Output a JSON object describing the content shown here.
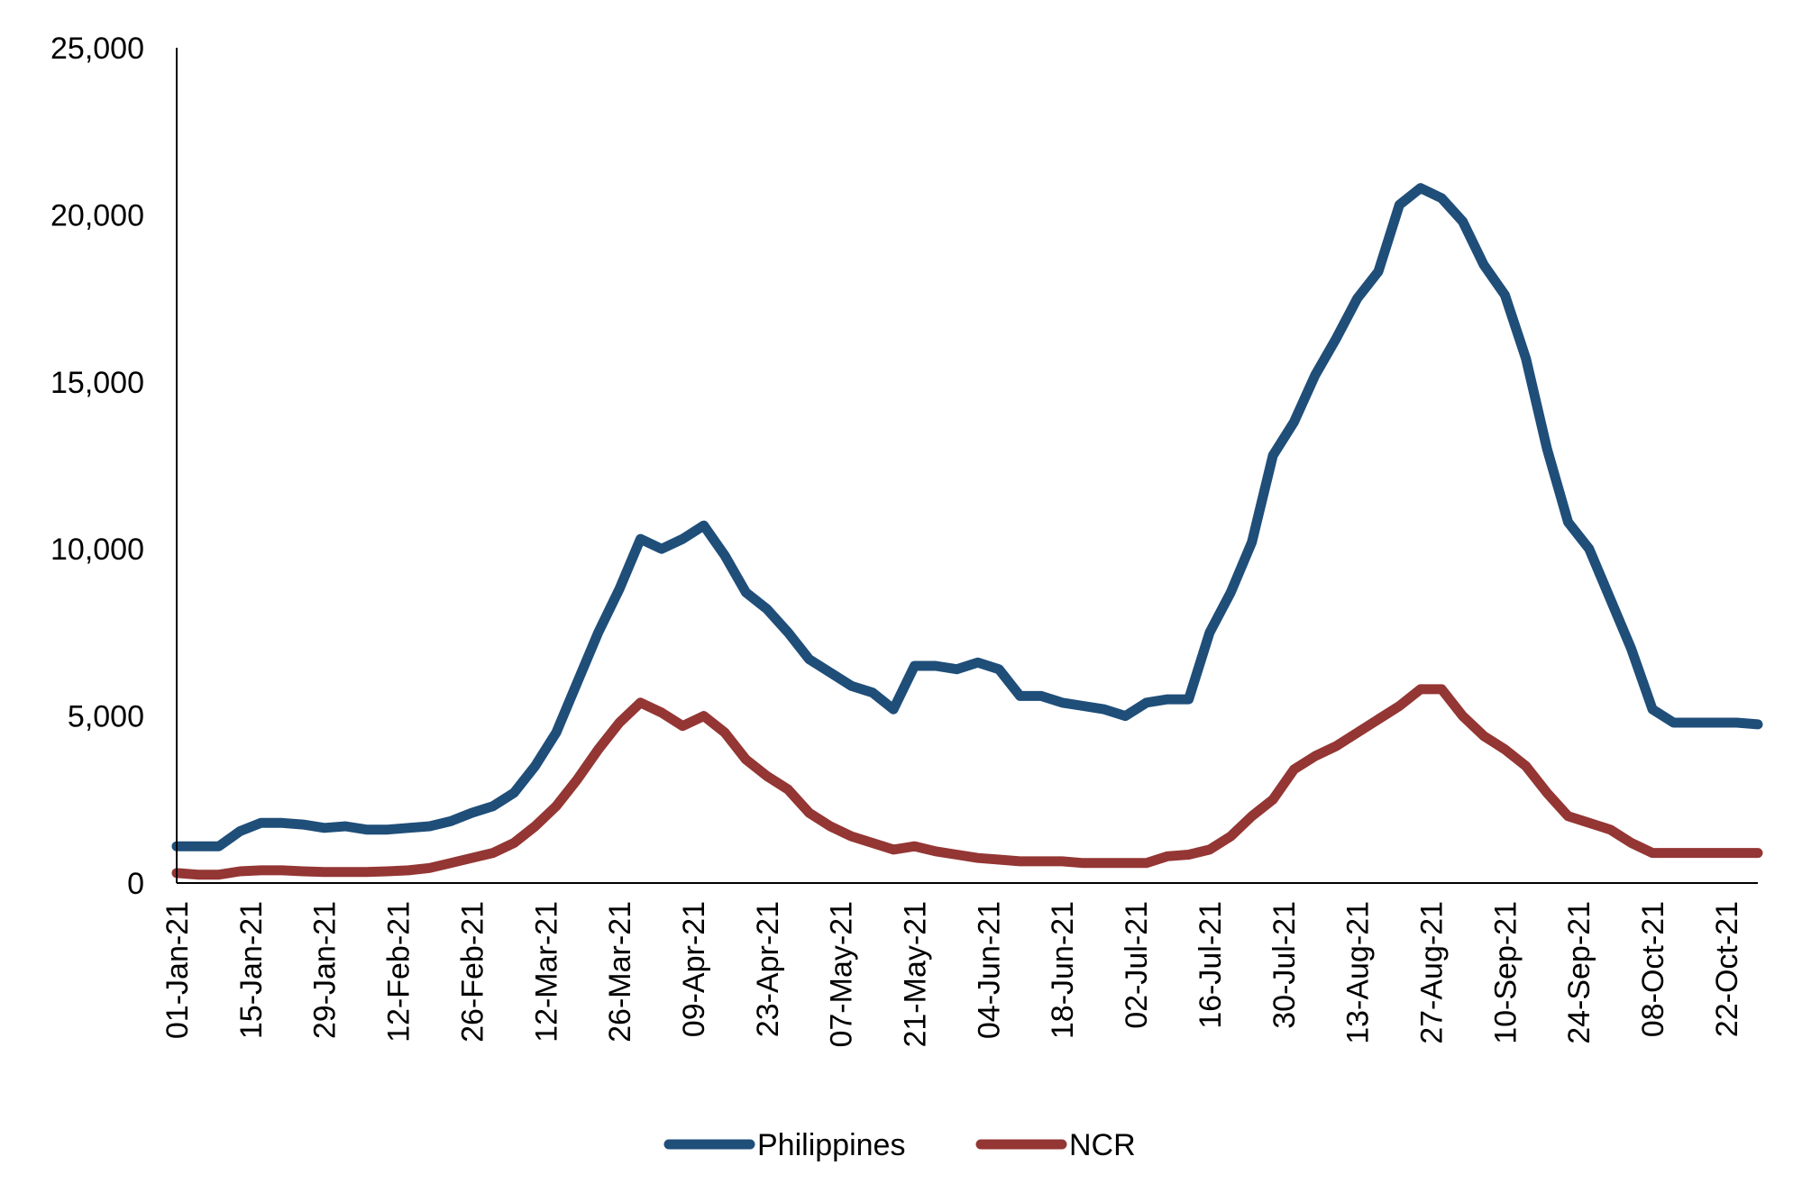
{
  "chart_data": {
    "type": "line",
    "title": "",
    "xlabel": "",
    "ylabel": "",
    "ylim": [
      0,
      25000
    ],
    "y_ticks": [
      "0",
      "5,000",
      "10,000",
      "15,000",
      "20,000",
      "25,000"
    ],
    "x_ticks": [
      "01-Jan-21",
      "15-Jan-21",
      "29-Jan-21",
      "12-Feb-21",
      "26-Feb-21",
      "12-Mar-21",
      "26-Mar-21",
      "09-Apr-21",
      "23-Apr-21",
      "07-May-21",
      "21-May-21",
      "04-Jun-21",
      "18-Jun-21",
      "02-Jul-21",
      "16-Jul-21",
      "30-Jul-21",
      "13-Aug-21",
      "27-Aug-21",
      "10-Sep-21",
      "24-Sep-21",
      "08-Oct-21",
      "22-Oct-21"
    ],
    "x_range": [
      "01-Jan-21",
      "28-Oct-21"
    ],
    "grid": false,
    "legend_position": "bottom-center",
    "x": [
      "01-Jan-21",
      "05-Jan-21",
      "09-Jan-21",
      "13-Jan-21",
      "17-Jan-21",
      "21-Jan-21",
      "25-Jan-21",
      "29-Jan-21",
      "02-Feb-21",
      "06-Feb-21",
      "10-Feb-21",
      "14-Feb-21",
      "18-Feb-21",
      "22-Feb-21",
      "26-Feb-21",
      "02-Mar-21",
      "06-Mar-21",
      "10-Mar-21",
      "14-Mar-21",
      "18-Mar-21",
      "22-Mar-21",
      "26-Mar-21",
      "30-Mar-21",
      "03-Apr-21",
      "07-Apr-21",
      "11-Apr-21",
      "15-Apr-21",
      "19-Apr-21",
      "23-Apr-21",
      "27-Apr-21",
      "01-May-21",
      "05-May-21",
      "09-May-21",
      "13-May-21",
      "17-May-21",
      "21-May-21",
      "25-May-21",
      "29-May-21",
      "02-Jun-21",
      "06-Jun-21",
      "10-Jun-21",
      "14-Jun-21",
      "18-Jun-21",
      "22-Jun-21",
      "26-Jun-21",
      "30-Jun-21",
      "04-Jul-21",
      "08-Jul-21",
      "12-Jul-21",
      "16-Jul-21",
      "20-Jul-21",
      "24-Jul-21",
      "28-Jul-21",
      "01-Aug-21",
      "05-Aug-21",
      "09-Aug-21",
      "13-Aug-21",
      "17-Aug-21",
      "21-Aug-21",
      "25-Aug-21",
      "29-Aug-21",
      "02-Sep-21",
      "06-Sep-21",
      "10-Sep-21",
      "14-Sep-21",
      "18-Sep-21",
      "22-Sep-21",
      "26-Sep-21",
      "30-Sep-21",
      "04-Oct-21",
      "08-Oct-21",
      "12-Oct-21",
      "16-Oct-21",
      "20-Oct-21",
      "24-Oct-21",
      "28-Oct-21"
    ],
    "series": [
      {
        "name": "Philippines",
        "color": "#1f4e79",
        "values": [
          1100,
          1100,
          1100,
          1550,
          1800,
          1800,
          1750,
          1650,
          1700,
          1600,
          1600,
          1650,
          1700,
          1850,
          2100,
          2300,
          2700,
          3500,
          4500,
          6000,
          7500,
          8800,
          10300,
          10000,
          10300,
          10700,
          9800,
          8700,
          8200,
          7500,
          6700,
          6300,
          5900,
          5700,
          5200,
          6500,
          6500,
          6400,
          6600,
          6400,
          5600,
          5600,
          5400,
          5300,
          5200,
          5000,
          5400,
          5500,
          5500,
          7500,
          8700,
          10200,
          12800,
          13800,
          15200,
          16300,
          17500,
          18300,
          20300,
          20800,
          20500,
          19800,
          18500,
          17600,
          15700,
          13000,
          10800,
          10000,
          8500,
          7000,
          5200,
          4800,
          4800,
          4800,
          4800,
          4750
        ]
      },
      {
        "name": "NCR",
        "color": "#943634",
        "values": [
          300,
          250,
          250,
          350,
          380,
          380,
          350,
          330,
          330,
          330,
          350,
          380,
          450,
          600,
          750,
          900,
          1200,
          1700,
          2300,
          3100,
          4000,
          4800,
          5400,
          5100,
          4700,
          5000,
          4500,
          3700,
          3200,
          2800,
          2100,
          1700,
          1400,
          1200,
          1000,
          1100,
          950,
          850,
          750,
          700,
          650,
          650,
          650,
          600,
          600,
          600,
          600,
          800,
          850,
          1000,
          1400,
          2000,
          2500,
          3400,
          3800,
          4100,
          4500,
          4900,
          5300,
          5800,
          5800,
          5000,
          4400,
          4000,
          3500,
          2700,
          2000,
          1800,
          1600,
          1200,
          900,
          900,
          900,
          900,
          900,
          900
        ]
      }
    ]
  }
}
